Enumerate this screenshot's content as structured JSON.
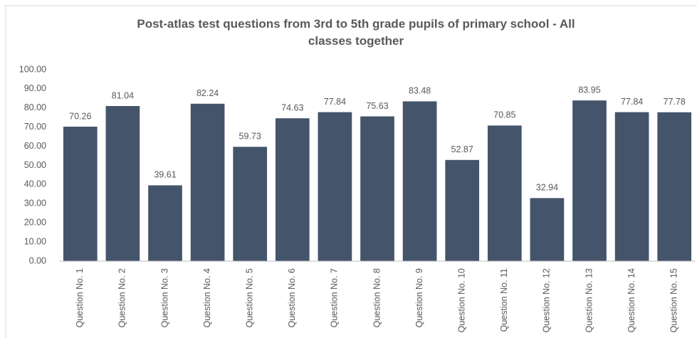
{
  "chart_data": {
    "type": "bar",
    "title": "Post-atlas test questions from 3rd to 5th grade pupils of primary school - All classes together",
    "categories": [
      "Question No. 1",
      "Question No. 2",
      "Question No. 3",
      "Question No. 4",
      "Question No. 5",
      "Question No. 6",
      "Question No. 7",
      "Question No. 8",
      "Question No. 9",
      "Question No. 10",
      "Question No. 11",
      "Question No. 12",
      "Question No. 13",
      "Question No. 14",
      "Question No. 15"
    ],
    "values": [
      70.26,
      81.04,
      39.61,
      82.24,
      59.73,
      74.63,
      77.84,
      75.63,
      83.48,
      52.87,
      70.85,
      32.94,
      83.95,
      77.84,
      77.78
    ],
    "color": "#44546a",
    "ylim": [
      0,
      100
    ],
    "yticks": [
      {
        "value": 0,
        "label": "0.00"
      },
      {
        "value": 10,
        "label": "10.00"
      },
      {
        "value": 20,
        "label": "20.00"
      },
      {
        "value": 30,
        "label": "30.00"
      },
      {
        "value": 40,
        "label": "40.00"
      },
      {
        "value": 50,
        "label": "50.00"
      },
      {
        "value": 60,
        "label": "60.00"
      },
      {
        "value": 70,
        "label": "70.00"
      },
      {
        "value": 80,
        "label": "80.00"
      },
      {
        "value": 90,
        "label": "90.00"
      },
      {
        "value": 100,
        "label": "100.00"
      }
    ],
    "grid": false
  }
}
